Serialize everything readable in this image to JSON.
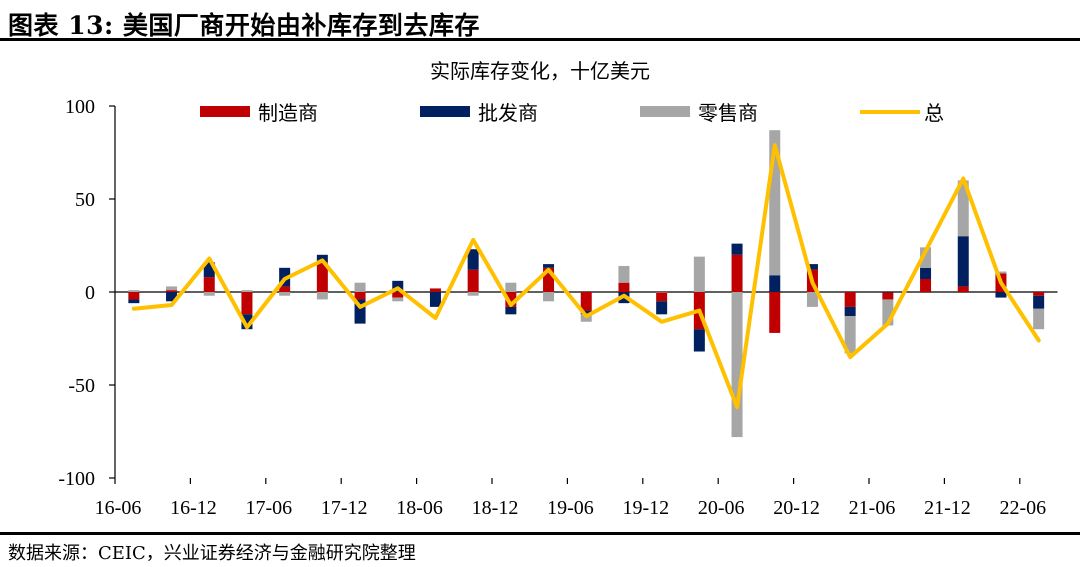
{
  "header": {
    "figure_title": "图表 13:  美国厂商开始由补库存到去库存"
  },
  "footer": {
    "source": "数据来源：CEIC，兴业证券经济与金融研究院整理"
  },
  "colors": {
    "manufacturer": "#c00000",
    "wholesale": "#002060",
    "retail": "#a6a6a6",
    "total": "#ffc000"
  },
  "chart_data": {
    "type": "bar",
    "stacked": true,
    "title": "实际库存变化，十亿美元",
    "xlabel": "",
    "ylabel": "",
    "ylim": [
      -100,
      100
    ],
    "yticks": [
      100,
      50,
      0,
      -50,
      -100
    ],
    "ytick_labels": [
      "100",
      "50",
      "0",
      "-50",
      "-100"
    ],
    "xtick_labels": [
      "16-06",
      "16-12",
      "17-06",
      "17-12",
      "18-06",
      "18-12",
      "19-06",
      "19-12",
      "20-06",
      "20-12",
      "21-06",
      "21-12",
      "22-06"
    ],
    "categories": [
      "16Q2",
      "16Q3",
      "16Q4",
      "17Q1",
      "17Q2",
      "17Q3",
      "17Q4",
      "18Q1",
      "18Q2",
      "18Q3",
      "18Q4",
      "19Q1",
      "19Q2",
      "19Q3",
      "19Q4",
      "20Q1",
      "20Q2",
      "20Q3",
      "20Q4",
      "21Q1",
      "21Q2",
      "21Q3",
      "21Q4",
      "22Q1",
      "22Q2"
    ],
    "series": [
      {
        "name": "制造商",
        "kind": "bar",
        "values": [
          -4,
          1,
          8,
          -12,
          3,
          16,
          -4,
          -3,
          2,
          12,
          -8,
          13,
          -10,
          5,
          -5,
          -20,
          20,
          -22,
          12,
          -8,
          -4,
          7,
          3,
          10,
          -2
        ]
      },
      {
        "name": "批发商",
        "kind": "bar",
        "values": [
          -2,
          -5,
          8,
          -8,
          10,
          4,
          -13,
          6,
          -8,
          11,
          -4,
          2,
          -2,
          -6,
          -7,
          -12,
          6,
          9,
          3,
          -5,
          0,
          6,
          27,
          -3,
          -7
        ]
      },
      {
        "name": "零售商",
        "kind": "bar",
        "values": [
          1,
          2,
          -2,
          1,
          -2,
          -4,
          5,
          -2,
          0,
          -2,
          5,
          -5,
          -4,
          9,
          0,
          19,
          -78,
          78,
          -8,
          -20,
          -14,
          11,
          30,
          1,
          -11
        ]
      },
      {
        "name": "总",
        "kind": "line",
        "values": [
          -9,
          -7,
          18,
          -19,
          7,
          17,
          -8,
          2,
          -14,
          28,
          -7,
          12,
          -13,
          -2,
          -16,
          -10,
          -62,
          79,
          5,
          -35,
          -17,
          22,
          61,
          5,
          -26
        ]
      }
    ],
    "legend_position": "top",
    "grid": false
  }
}
